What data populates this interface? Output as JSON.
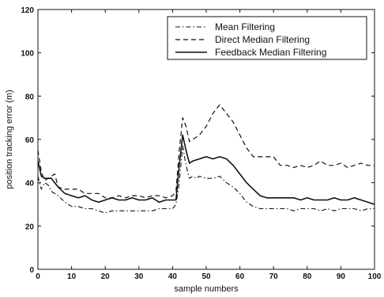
{
  "chart_data": {
    "type": "line",
    "title": "",
    "xlabel": "sample numbers",
    "ylabel": "position tracking error (m)",
    "xlim": [
      0,
      100
    ],
    "ylim": [
      0,
      120
    ],
    "x_ticks": [
      "0",
      "10",
      "20",
      "30",
      "40",
      "50",
      "60",
      "70",
      "80",
      "90",
      "100"
    ],
    "y_ticks": [
      "0",
      "20",
      "40",
      "60",
      "80",
      "100",
      "120"
    ],
    "grid": false,
    "legend_position": "top-right",
    "series": [
      {
        "name": "Mean Filtering",
        "style": "dashdot",
        "points": [
          [
            0,
            43
          ],
          [
            1,
            37
          ],
          [
            2,
            40
          ],
          [
            3,
            39
          ],
          [
            4,
            36
          ],
          [
            6,
            34
          ],
          [
            8,
            31
          ],
          [
            10,
            29
          ],
          [
            12,
            29
          ],
          [
            14,
            28
          ],
          [
            16,
            28
          ],
          [
            18,
            27
          ],
          [
            20,
            26
          ],
          [
            22,
            27
          ],
          [
            24,
            27
          ],
          [
            26,
            27
          ],
          [
            28,
            27
          ],
          [
            30,
            27
          ],
          [
            32,
            27
          ],
          [
            34,
            27
          ],
          [
            36,
            28
          ],
          [
            38,
            28
          ],
          [
            40,
            28
          ],
          [
            41,
            30
          ],
          [
            42,
            40
          ],
          [
            43,
            57
          ],
          [
            44,
            48
          ],
          [
            45,
            42
          ],
          [
            46,
            43
          ],
          [
            47,
            42
          ],
          [
            48,
            43
          ],
          [
            50,
            42
          ],
          [
            52,
            42
          ],
          [
            54,
            43
          ],
          [
            56,
            40
          ],
          [
            58,
            38
          ],
          [
            60,
            35
          ],
          [
            62,
            31
          ],
          [
            64,
            29
          ],
          [
            66,
            28
          ],
          [
            68,
            28
          ],
          [
            70,
            28
          ],
          [
            72,
            28
          ],
          [
            74,
            28
          ],
          [
            76,
            27
          ],
          [
            78,
            28
          ],
          [
            80,
            28
          ],
          [
            82,
            28
          ],
          [
            84,
            27
          ],
          [
            86,
            28
          ],
          [
            88,
            27
          ],
          [
            90,
            28
          ],
          [
            92,
            28
          ],
          [
            94,
            28
          ],
          [
            96,
            27
          ],
          [
            98,
            28
          ],
          [
            100,
            28
          ]
        ]
      },
      {
        "name": "Direct Median Filtering",
        "style": "dashed",
        "points": [
          [
            0,
            55
          ],
          [
            1,
            45
          ],
          [
            2,
            41
          ],
          [
            3,
            42
          ],
          [
            4,
            43
          ],
          [
            5,
            44
          ],
          [
            6,
            38
          ],
          [
            8,
            37
          ],
          [
            10,
            37
          ],
          [
            12,
            37
          ],
          [
            14,
            35
          ],
          [
            16,
            35
          ],
          [
            18,
            35
          ],
          [
            20,
            33
          ],
          [
            22,
            33
          ],
          [
            24,
            34
          ],
          [
            26,
            33
          ],
          [
            28,
            34
          ],
          [
            30,
            34
          ],
          [
            32,
            33
          ],
          [
            34,
            34
          ],
          [
            36,
            34
          ],
          [
            38,
            33
          ],
          [
            40,
            34
          ],
          [
            41,
            36
          ],
          [
            42,
            55
          ],
          [
            43,
            70
          ],
          [
            44,
            66
          ],
          [
            45,
            59
          ],
          [
            46,
            60
          ],
          [
            48,
            62
          ],
          [
            50,
            66
          ],
          [
            52,
            72
          ],
          [
            54,
            76
          ],
          [
            55,
            74
          ],
          [
            56,
            72
          ],
          [
            58,
            68
          ],
          [
            60,
            62
          ],
          [
            62,
            56
          ],
          [
            64,
            52
          ],
          [
            66,
            52
          ],
          [
            68,
            52
          ],
          [
            70,
            52
          ],
          [
            72,
            48
          ],
          [
            74,
            48
          ],
          [
            76,
            47
          ],
          [
            78,
            48
          ],
          [
            80,
            47
          ],
          [
            82,
            48
          ],
          [
            84,
            50
          ],
          [
            86,
            48
          ],
          [
            88,
            48
          ],
          [
            90,
            49
          ],
          [
            92,
            47
          ],
          [
            94,
            48
          ],
          [
            96,
            49
          ],
          [
            98,
            48
          ],
          [
            100,
            48
          ]
        ]
      },
      {
        "name": "Feedback Median Filtering",
        "style": "solid",
        "points": [
          [
            0,
            50
          ],
          [
            1,
            43
          ],
          [
            2,
            42
          ],
          [
            4,
            42
          ],
          [
            5,
            40
          ],
          [
            6,
            38
          ],
          [
            8,
            35
          ],
          [
            10,
            34
          ],
          [
            12,
            33
          ],
          [
            14,
            34
          ],
          [
            16,
            32
          ],
          [
            18,
            31
          ],
          [
            20,
            32
          ],
          [
            22,
            33
          ],
          [
            24,
            32
          ],
          [
            26,
            32
          ],
          [
            28,
            33
          ],
          [
            30,
            32
          ],
          [
            32,
            32
          ],
          [
            34,
            33
          ],
          [
            36,
            31
          ],
          [
            38,
            32
          ],
          [
            40,
            32
          ],
          [
            41,
            32
          ],
          [
            42,
            48
          ],
          [
            43,
            62
          ],
          [
            44,
            55
          ],
          [
            45,
            49
          ],
          [
            46,
            50
          ],
          [
            48,
            51
          ],
          [
            50,
            52
          ],
          [
            52,
            51
          ],
          [
            54,
            52
          ],
          [
            56,
            51
          ],
          [
            58,
            48
          ],
          [
            60,
            44
          ],
          [
            62,
            40
          ],
          [
            64,
            37
          ],
          [
            66,
            34
          ],
          [
            68,
            33
          ],
          [
            70,
            33
          ],
          [
            72,
            33
          ],
          [
            74,
            33
          ],
          [
            76,
            33
          ],
          [
            78,
            32
          ],
          [
            80,
            33
          ],
          [
            82,
            32
          ],
          [
            84,
            32
          ],
          [
            86,
            32
          ],
          [
            88,
            33
          ],
          [
            90,
            32
          ],
          [
            92,
            32
          ],
          [
            94,
            33
          ],
          [
            96,
            32
          ],
          [
            98,
            31
          ],
          [
            100,
            30
          ]
        ]
      }
    ]
  }
}
